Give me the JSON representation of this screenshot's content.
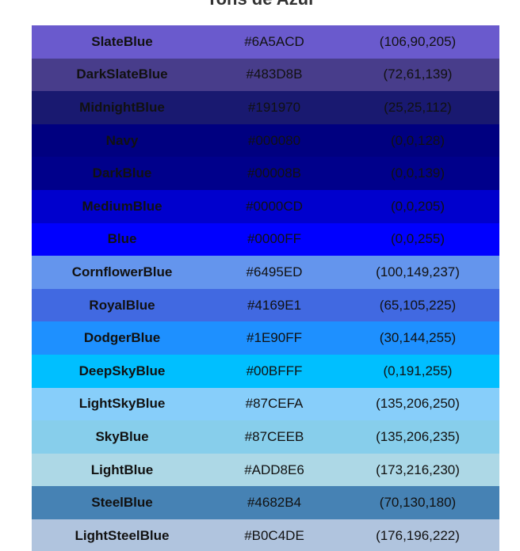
{
  "heading": "Tons de Azul",
  "rows": [
    {
      "name": "SlateBlue",
      "hex": "#6A5ACD",
      "rgb": "(106,90,205)",
      "color": "#6A5ACD"
    },
    {
      "name": "DarkSlateBlue",
      "hex": "#483D8B",
      "rgb": "(72,61,139)",
      "color": "#483D8B"
    },
    {
      "name": "MidnightBlue",
      "hex": "#191970",
      "rgb": "(25,25,112)",
      "color": "#191970"
    },
    {
      "name": "Navy",
      "hex": "#000080",
      "rgb": "(0,0,128)",
      "color": "#000080"
    },
    {
      "name": "DarkBlue",
      "hex": "#00008B",
      "rgb": "(0,0,139)",
      "color": "#00008B"
    },
    {
      "name": "MediumBlue",
      "hex": "#0000CD",
      "rgb": "(0,0,205)",
      "color": "#0000CD"
    },
    {
      "name": "Blue",
      "hex": "#0000FF",
      "rgb": "(0,0,255)",
      "color": "#0000FF"
    },
    {
      "name": "CornflowerBlue",
      "hex": "#6495ED",
      "rgb": "(100,149,237)",
      "color": "#6495ED"
    },
    {
      "name": "RoyalBlue",
      "hex": "#4169E1",
      "rgb": "(65,105,225)",
      "color": "#4169E1"
    },
    {
      "name": "DodgerBlue",
      "hex": "#1E90FF",
      "rgb": "(30,144,255)",
      "color": "#1E90FF"
    },
    {
      "name": "DeepSkyBlue",
      "hex": "#00BFFF",
      "rgb": "(0,191,255)",
      "color": "#00BFFF"
    },
    {
      "name": "LightSkyBlue",
      "hex": "#87CEFA",
      "rgb": "(135,206,250)",
      "color": "#87CEFA"
    },
    {
      "name": "SkyBlue",
      "hex": "#87CEEB",
      "rgb": "(135,206,235)",
      "color": "#87CEEB"
    },
    {
      "name": "LightBlue",
      "hex": "#ADD8E6",
      "rgb": "(173,216,230)",
      "color": "#ADD8E6"
    },
    {
      "name": "SteelBlue",
      "hex": "#4682B4",
      "rgb": "(70,130,180)",
      "color": "#4682B4"
    },
    {
      "name": "LightSteelBlue",
      "hex": "#B0C4DE",
      "rgb": "(176,196,222)",
      "color": "#B0C4DE"
    }
  ]
}
